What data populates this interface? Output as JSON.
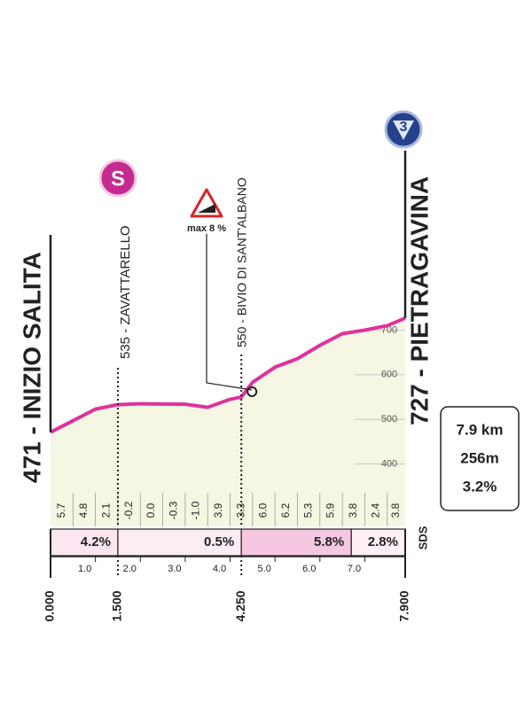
{
  "chart_data": {
    "type": "area",
    "x": [
      0,
      0.5,
      1.0,
      1.5,
      2.0,
      3.0,
      3.5,
      4.0,
      4.25,
      4.5,
      5.0,
      5.5,
      6.0,
      6.5,
      7.0,
      7.5,
      7.9
    ],
    "values": [
      471,
      497,
      523,
      533,
      535,
      534,
      527,
      545,
      550,
      583,
      617,
      636,
      666,
      692,
      700,
      710,
      727
    ],
    "color": "#e0329b",
    "fill": "#f5f7e3",
    "xlim": [
      0,
      7.9
    ],
    "ylim": [
      260,
      730
    ],
    "yticks": [
      400,
      500,
      600,
      700
    ],
    "xticks": [
      {
        "value": 1,
        "label": "1.0"
      },
      {
        "value": 2,
        "label": "2.0"
      },
      {
        "value": 3,
        "label": "3.0"
      },
      {
        "value": 4,
        "label": "4.0"
      },
      {
        "value": 5,
        "label": "5.0"
      },
      {
        "value": 6,
        "label": "6.0"
      },
      {
        "value": 7,
        "label": "7.0"
      }
    ],
    "distance_marks": [
      {
        "value": 0,
        "label": "0.000"
      },
      {
        "value": 1.5,
        "label": "1.500"
      },
      {
        "value": 4.25,
        "label": "4.250"
      },
      {
        "value": 7.9,
        "label": "7.900"
      }
    ],
    "landmarks": [
      "471 - INIZIO SALITA",
      "535 - ZAVATTARELLO",
      "550 - BIVIO DI SANT'ALBANO",
      "727 - PIETRAGAVINA"
    ],
    "segment_gradients": [
      5.7,
      4.8,
      2.1,
      -0.2,
      {
        "value": 0,
        "label": "0.0"
      },
      -0.3,
      {
        "value": -1,
        "label": "-1.0"
      },
      3.9,
      3.3,
      {
        "value": 6,
        "label": "6.0"
      },
      6.2,
      5.3,
      5.9,
      3.8,
      2.4,
      3.8
    ],
    "sectors": [
      {
        "start": 0,
        "end": 1.5,
        "value": 4.2,
        "label": "4.2%",
        "color": "#fbe6f1"
      },
      {
        "start": 1.5,
        "end": 4.25,
        "value": 0.5,
        "label": "0.5%",
        "color": "#fcedf5"
      },
      {
        "start": 4.25,
        "end": 6.7,
        "value": 5.8,
        "label": "5.8%",
        "color": "#f6c7e0"
      },
      {
        "start": 6.7,
        "end": 7.9,
        "value": 2.8,
        "label": "2.8%",
        "color": "#fdf0f6"
      }
    ],
    "summary": [
      "7.9 km",
      "256m",
      "3.2%"
    ],
    "max_gradient": "max 8 %",
    "start_icon": "S",
    "kom_icon": "3",
    "logo": "SDS"
  }
}
